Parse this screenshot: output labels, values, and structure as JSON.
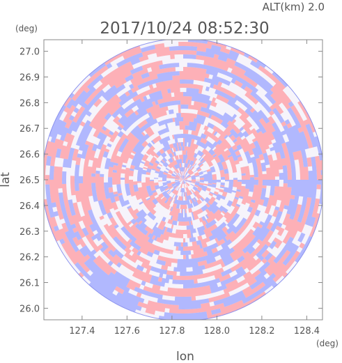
{
  "header": {
    "altitude": "ALT(km) 2.0",
    "timestamp": "2017/10/24 08:52:30"
  },
  "chart_data": {
    "type": "heatmap",
    "title": "2017/10/24 08:52:30",
    "subtitle": "ALT(km) 2.0",
    "xlabel": "lon",
    "ylabel": "lat",
    "x_unit": "(deg)",
    "y_unit": "(deg)",
    "xlim": [
      127.23,
      128.47
    ],
    "ylim": [
      25.955,
      27.045
    ],
    "x_ticks": [
      "127.4",
      "127.6",
      "127.8",
      "128.0",
      "128.2",
      "128.4"
    ],
    "y_ticks": [
      "26.0",
      "26.1",
      "26.2",
      "26.3",
      "26.4",
      "26.5",
      "26.6",
      "26.7",
      "26.8",
      "26.9",
      "27.0"
    ],
    "radar_center": [
      127.85,
      26.5
    ],
    "coverage": "circular radar scan",
    "colors": {
      "positive": "#ff9aa0",
      "negative": "#9aa4ff",
      "neutral": "#ffffff"
    },
    "grid": false
  }
}
